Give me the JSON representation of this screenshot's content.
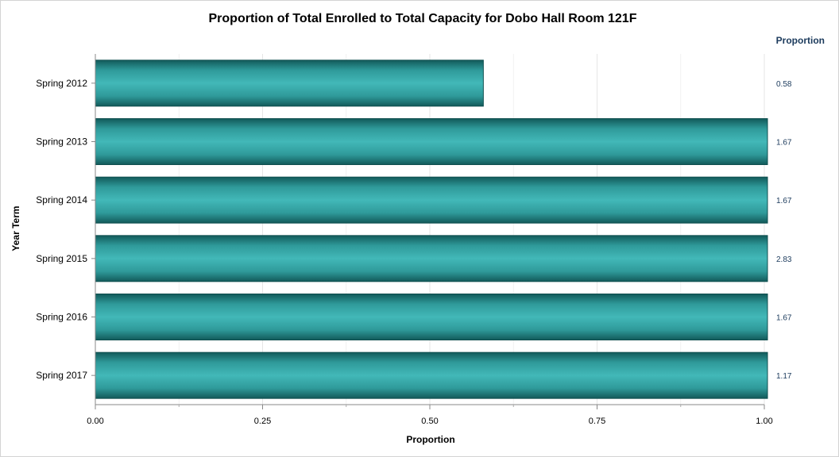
{
  "chart_data": {
    "type": "bar",
    "orientation": "horizontal",
    "title": "Proportion of Total Enrolled to Total Capacity for Dobo Hall Room 121F",
    "xlabel": "Proportion",
    "ylabel": "Year Term",
    "value_column_header": "Proportion",
    "categories": [
      "Spring 2012",
      "Spring 2013",
      "Spring 2014",
      "Spring 2015",
      "Spring 2016",
      "Spring 2017"
    ],
    "values": [
      0.58,
      1.67,
      1.67,
      2.83,
      1.67,
      1.17
    ],
    "value_labels": [
      "0.58",
      "1.67",
      "1.67",
      "2.83",
      "1.67",
      "1.17"
    ],
    "xlim": [
      0,
      1
    ],
    "xticks": [
      0,
      0.25,
      0.5,
      0.75,
      1.0
    ],
    "xtick_labels": [
      "0.00",
      "0.25",
      "0.50",
      "0.75",
      "1.00"
    ],
    "grid": true,
    "colors": {
      "bar": "#3fb3b3",
      "bar_edge": "#0f4f4f",
      "value_text": "#1b3a5c"
    }
  }
}
